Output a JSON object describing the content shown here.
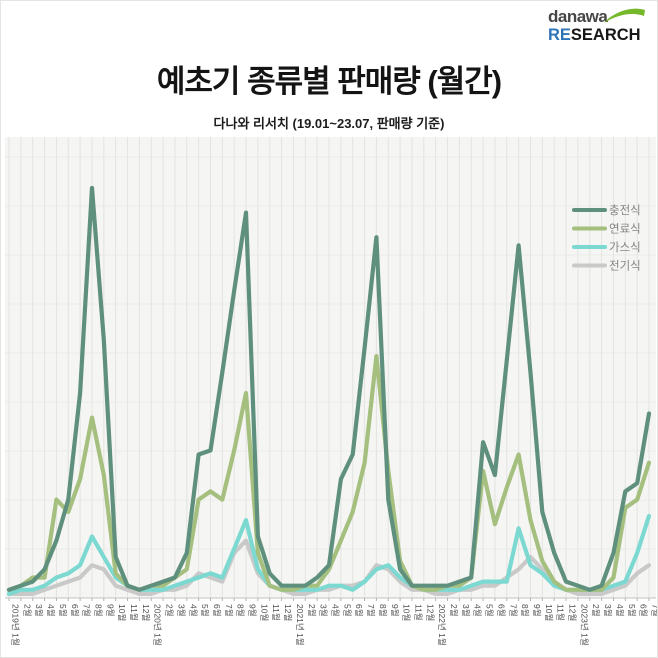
{
  "logo": {
    "brand": "danawa",
    "research_blue": "RE",
    "research_black": "SEARCH"
  },
  "title": "예초기 종류별 판매량 (월간)",
  "subtitle": "다나와 리서치 (19.01~23.07, 판매량 기준)",
  "chart_data": {
    "type": "line",
    "title": "예초기 종류별 판매량 (월간)",
    "xlabel": "",
    "ylabel": "",
    "y_axis_visible": false,
    "grid": true,
    "legend_position": "top-right",
    "ylim": [
      0,
      105
    ],
    "value_scale": "relative sales index (no y-axis labels shown; 100 = Aug 2019 충전식 peak)",
    "x_labels": [
      "2019년 1월",
      "2월",
      "3월",
      "4월",
      "5월",
      "6월",
      "7월",
      "8월",
      "9월",
      "10월",
      "11월",
      "12월",
      "2020년 1월",
      "2월",
      "3월",
      "4월",
      "5월",
      "6월",
      "7월",
      "8월",
      "9월",
      "10월",
      "11월",
      "12월",
      "2021년 1월",
      "2월",
      "3월",
      "4월",
      "5월",
      "6월",
      "7월",
      "8월",
      "9월",
      "10월",
      "11월",
      "12월",
      "2022년 1월",
      "2월",
      "3월",
      "4월",
      "5월",
      "6월",
      "7월",
      "8월",
      "9월",
      "10월",
      "11월",
      "12월",
      "2023년 1월",
      "2월",
      "3월",
      "4월",
      "5월",
      "6월",
      "7월"
    ],
    "series": [
      {
        "key": "rechargeable",
        "name": "충전식",
        "color": "#5f907d",
        "values": [
          2,
          3,
          4,
          7,
          14,
          24,
          50,
          100,
          63,
          10,
          3,
          2,
          3,
          4,
          5,
          11,
          35,
          36,
          55,
          75,
          94,
          15,
          6,
          3,
          3,
          3,
          5,
          8,
          29,
          35,
          61,
          88,
          24,
          7,
          3,
          3,
          3,
          3,
          4,
          5,
          38,
          30,
          58,
          86,
          55,
          21,
          11,
          4,
          3,
          2,
          3,
          11,
          26,
          28,
          45
        ]
      },
      {
        "key": "fuel",
        "name": "연료식",
        "color": "#a4bf7e",
        "values": [
          2,
          3,
          5,
          5,
          24,
          21,
          29,
          44,
          30,
          6,
          3,
          2,
          3,
          3,
          5,
          7,
          24,
          26,
          24,
          36,
          50,
          11,
          3,
          2,
          2,
          3,
          3,
          7,
          14,
          21,
          33,
          59,
          31,
          9,
          3,
          2,
          2,
          3,
          3,
          5,
          31,
          18,
          27,
          35,
          19,
          9,
          4,
          2,
          2,
          2,
          2,
          5,
          22,
          24,
          33
        ]
      },
      {
        "key": "gas",
        "name": "가스식",
        "color": "#7bd9d1",
        "values": [
          1,
          2,
          2,
          3,
          5,
          6,
          8,
          15,
          10,
          5,
          3,
          2,
          2,
          2,
          3,
          4,
          5,
          6,
          5,
          12,
          19,
          7,
          3,
          2,
          2,
          2,
          2,
          3,
          3,
          2,
          4,
          7,
          8,
          5,
          3,
          2,
          2,
          2,
          2,
          3,
          4,
          4,
          4,
          17,
          8,
          6,
          3,
          2,
          2,
          2,
          2,
          3,
          4,
          11,
          20
        ]
      },
      {
        "key": "electric",
        "name": "전기식",
        "color": "#c9c9c9",
        "values": [
          1,
          1,
          1,
          2,
          3,
          4,
          5,
          8,
          7,
          3,
          2,
          1,
          1,
          2,
          2,
          3,
          6,
          5,
          4,
          11,
          14,
          6,
          3,
          2,
          1,
          1,
          2,
          2,
          3,
          3,
          4,
          8,
          7,
          4,
          2,
          2,
          1,
          1,
          2,
          2,
          3,
          3,
          5,
          7,
          10,
          7,
          3,
          2,
          1,
          1,
          1,
          2,
          3,
          6,
          8
        ]
      }
    ]
  }
}
